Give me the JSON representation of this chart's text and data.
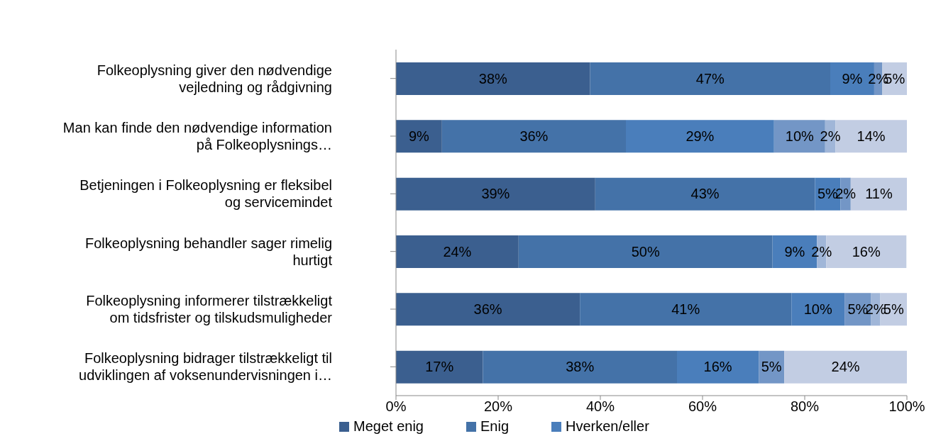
{
  "chart_data": {
    "type": "bar",
    "orientation": "horizontal",
    "stacked": true,
    "legend": "bottom",
    "grid": false,
    "categories": [
      "Folkeoplysning giver den nødvendige vejledning og rådgivning",
      "Man kan finde den nødvendige information på Folkeoplysnings…",
      "Betjeningen i Folkeoplysning er fleksibel og servicemindet",
      "Folkeoplysning behandler sager rimelig hurtigt",
      "Folkeoplysning informerer tilstrækkeligt om tidsfrister og tilskudsmuligheder",
      "Folkeoplysning bidrager tilstrækkeligt til udviklingen af voksenundervisningen i…"
    ],
    "xlim": [
      0,
      100
    ],
    "xticks": [
      {
        "value": 0,
        "label": "0%"
      },
      {
        "value": 20,
        "label": "20%"
      },
      {
        "value": 40,
        "label": "40%"
      },
      {
        "value": 60,
        "label": "60%"
      },
      {
        "value": 80,
        "label": "80%"
      },
      {
        "value": 100,
        "label": "100%"
      }
    ],
    "series": [
      {
        "name": "Meget enig",
        "color": "#3b5f8f",
        "values": [
          38,
          9,
          39,
          24,
          36,
          17
        ],
        "value_labels": [
          "38%",
          "9%",
          "39%",
          "24%",
          "36%",
          "17%"
        ]
      },
      {
        "name": "Enig",
        "color": "#4472a8",
        "values": [
          47,
          36,
          43,
          49.7,
          41.4,
          38
        ],
        "value_labels": [
          "47%",
          "36%",
          "43%",
          "50%",
          "41%",
          "38%"
        ]
      },
      {
        "name": "Hverken/eller",
        "color": "#4a7ebb",
        "values": [
          8.6,
          29,
          5,
          8.7,
          10.4,
          16
        ],
        "value_labels": [
          "9%",
          "29%",
          "5%",
          "9%",
          "10%",
          "16%"
        ]
      },
      {
        "color": "#7396c6",
        "values": [
          1.6,
          10,
          2,
          0,
          5.2,
          5
        ],
        "value_labels": [
          "2%",
          "10%",
          "2%",
          null,
          "5%",
          "5%"
        ]
      },
      {
        "color": "#a0b6d8",
        "values": [
          0,
          2,
          0,
          1.8,
          1.8,
          0
        ],
        "value_labels": [
          null,
          "2%",
          null,
          "2%",
          "2%",
          null
        ]
      },
      {
        "color": "#c2cde3",
        "values": [
          4.8,
          14,
          11,
          15.7,
          5.2,
          24
        ],
        "value_labels": [
          "5%",
          "14%",
          "11%",
          "16%",
          "5%",
          "24%"
        ]
      }
    ]
  }
}
